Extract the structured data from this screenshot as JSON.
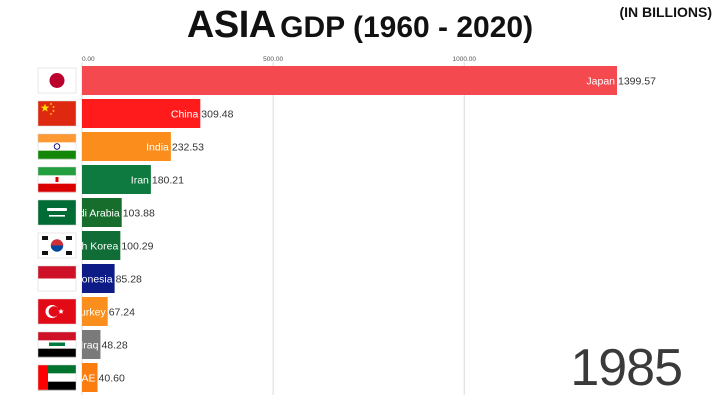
{
  "header": {
    "title_main": "ASIA",
    "title_rest": "GDP (1960 - 2020)",
    "unit": "(IN BILLIONS)"
  },
  "year_label": "1985",
  "chart_data": {
    "type": "bar",
    "orientation": "horizontal",
    "title": "ASIA GDP (1960 - 2020)",
    "unit": "(IN BILLIONS)",
    "xlim": [
      0,
      1400
    ],
    "ticks": [
      {
        "value": 0,
        "label": "0.00"
      },
      {
        "value": 500,
        "label": "500.00"
      },
      {
        "value": 1000,
        "label": "1000.00"
      }
    ],
    "grid": true,
    "categories": [
      "Japan",
      "China",
      "India",
      "Iran",
      "Saudi Arabia",
      "South Korea",
      "Indonesia",
      "Turkey",
      "Iraq",
      "UAE"
    ],
    "values": [
      1399.57,
      309.48,
      232.53,
      180.21,
      103.88,
      100.29,
      85.28,
      67.24,
      48.28,
      40.6
    ],
    "value_labels": [
      "1399.57",
      "309.48",
      "232.53",
      "180.21",
      "103.88",
      "100.29",
      "85.28",
      "67.24",
      "48.28",
      "40.60"
    ],
    "colors": [
      "#f4494f",
      "#ff1b1b",
      "#fb8d1d",
      "#0f7a3f",
      "#176e2c",
      "#0f6d35",
      "#0c1b86",
      "#fa8f1d",
      "#7a7a7a",
      "#fb7d10"
    ],
    "flags": [
      "japan-flag",
      "china-flag",
      "india-flag",
      "iran-flag",
      "saudi-arabia-flag",
      "south-korea-flag",
      "indonesia-flag",
      "turkey-flag",
      "iraq-flag",
      "uae-flag"
    ]
  }
}
